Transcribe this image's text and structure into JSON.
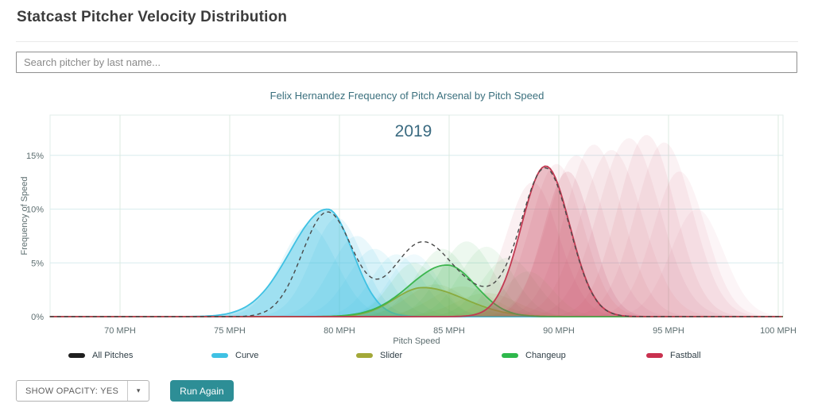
{
  "page": {
    "title": "Statcast Pitcher Velocity Distribution"
  },
  "search": {
    "placeholder": "Search pitcher by last name..."
  },
  "controls": {
    "opacity_label": "SHOW OPACITY: YES",
    "run_button": "Run Again",
    "button_color": "#2d8e96"
  },
  "chart_data": {
    "type": "area",
    "title": "Felix Hernandez Frequency of Pitch Arsenal by Pitch Speed",
    "annotation": "2019",
    "xlabel": "Pitch Speed",
    "ylabel": "Frequency of Speed",
    "xlim": [
      66.8,
      100.2
    ],
    "ylim": [
      0,
      18.75
    ],
    "grid": true,
    "x_ticks": [
      {
        "value": 70,
        "label": "70 MPH"
      },
      {
        "value": 75,
        "label": "75 MPH"
      },
      {
        "value": 80,
        "label": "80 MPH"
      },
      {
        "value": 85,
        "label": "85 MPH"
      },
      {
        "value": 90,
        "label": "90 MPH"
      },
      {
        "value": 95,
        "label": "95 MPH"
      },
      {
        "value": 100,
        "label": "100 MPH"
      }
    ],
    "y_ticks": [
      {
        "value": 0,
        "label": "0%"
      },
      {
        "value": 5,
        "label": "5%"
      },
      {
        "value": 10,
        "label": "10%"
      },
      {
        "value": 15,
        "label": "15%"
      }
    ],
    "legend": [
      {
        "name": "All Pitches",
        "color": "#1f1f1f"
      },
      {
        "name": "Curve",
        "color": "#3fc1e3"
      },
      {
        "name": "Slider",
        "color": "#a3a838"
      },
      {
        "name": "Changeup",
        "color": "#2eb84b"
      },
      {
        "name": "Fastball",
        "color": "#c9314f"
      }
    ],
    "series": [
      {
        "name": "Curve",
        "color": "#3fc1e3",
        "fill_opacity": 0.42,
        "peak_pct": 10.0,
        "peak_mph": 79.45,
        "sigma_left": 1.7,
        "sigma_right": 1.15
      },
      {
        "name": "Slider",
        "color": "#a3a838",
        "fill_opacity": 0.25,
        "peak_pct": 2.7,
        "peak_mph": 83.8,
        "sigma_left": 1.3,
        "sigma_right": 1.9
      },
      {
        "name": "Changeup",
        "color": "#3cb54e",
        "fill_opacity": 0.25,
        "peak_pct": 4.8,
        "peak_mph": 84.9,
        "sigma_left": 1.7,
        "sigma_right": 1.3
      },
      {
        "name": "Fastball",
        "color": "#c23a52",
        "fill_opacity": 0.33,
        "peak_pct": 14.0,
        "peak_mph": 89.4,
        "sigma_left": 1.1,
        "sigma_right": 1.1
      }
    ],
    "all_pitches": {
      "name": "All Pitches",
      "color": "#4a4a4a",
      "dashed": true,
      "components": [
        {
          "mph": 79.45,
          "sigma": 1.15,
          "peak_pct": 9.7
        },
        {
          "mph": 83.6,
          "sigma": 1.25,
          "peak_pct": 5.2
        },
        {
          "mph": 85.3,
          "sigma": 1.9,
          "peak_pct": 2.5
        },
        {
          "mph": 89.4,
          "sigma": 1.1,
          "peak_pct": 13.6
        }
      ]
    },
    "ghost_layers": [
      {
        "color": "#3fc1e3",
        "mph": 78.6,
        "sigma": 1.25,
        "peak_pct": 8.5,
        "opacity": 0.13
      },
      {
        "color": "#3fc1e3",
        "mph": 79.9,
        "sigma": 1.15,
        "peak_pct": 9.2,
        "opacity": 0.12
      },
      {
        "color": "#3fc1e3",
        "mph": 80.8,
        "sigma": 1.2,
        "peak_pct": 7.5,
        "opacity": 0.11
      },
      {
        "color": "#3fc1e3",
        "mph": 81.6,
        "sigma": 1.2,
        "peak_pct": 6.3,
        "opacity": 0.1
      },
      {
        "color": "#3fc1e3",
        "mph": 82.6,
        "sigma": 1.15,
        "peak_pct": 5.8,
        "opacity": 0.1
      },
      {
        "color": "#3fc1e3",
        "mph": 83.4,
        "sigma": 1.1,
        "peak_pct": 5.8,
        "opacity": 0.08
      },
      {
        "color": "#a3a838",
        "mph": 84.4,
        "sigma": 1.3,
        "peak_pct": 3.0,
        "opacity": 0.12
      },
      {
        "color": "#a3a838",
        "mph": 85.6,
        "sigma": 1.4,
        "peak_pct": 2.8,
        "opacity": 0.1
      },
      {
        "color": "#a3a838",
        "mph": 86.7,
        "sigma": 1.4,
        "peak_pct": 2.2,
        "opacity": 0.1
      },
      {
        "color": "#3cb54e",
        "mph": 83.4,
        "sigma": 1.1,
        "peak_pct": 5.0,
        "opacity": 0.09
      },
      {
        "color": "#3cb54e",
        "mph": 84.7,
        "sigma": 1.2,
        "peak_pct": 6.3,
        "opacity": 0.09
      },
      {
        "color": "#3cb54e",
        "mph": 85.8,
        "sigma": 1.2,
        "peak_pct": 7.0,
        "opacity": 0.09
      },
      {
        "color": "#3cb54e",
        "mph": 86.7,
        "sigma": 1.2,
        "peak_pct": 6.5,
        "opacity": 0.08
      },
      {
        "color": "#3cb54e",
        "mph": 87.7,
        "sigma": 1.2,
        "peak_pct": 5.5,
        "opacity": 0.08
      },
      {
        "color": "#3cb54e",
        "mph": 88.6,
        "sigma": 1.1,
        "peak_pct": 4.2,
        "opacity": 0.07
      },
      {
        "color": "#cf5a74",
        "mph": 88.8,
        "sigma": 1.2,
        "peak_pct": 12.5,
        "opacity": 0.09
      },
      {
        "color": "#cf5a74",
        "mph": 90.4,
        "sigma": 1.1,
        "peak_pct": 13.5,
        "opacity": 0.15
      },
      {
        "color": "#cf5a74",
        "mph": 89.9,
        "sigma": 1.2,
        "peak_pct": 14.2,
        "opacity": 0.09
      },
      {
        "color": "#cf5a74",
        "mph": 90.8,
        "sigma": 1.3,
        "peak_pct": 15.0,
        "opacity": 0.08
      },
      {
        "color": "#cf5a74",
        "mph": 91.6,
        "sigma": 1.3,
        "peak_pct": 16.0,
        "opacity": 0.08
      },
      {
        "color": "#cf5a74",
        "mph": 92.4,
        "sigma": 1.4,
        "peak_pct": 15.5,
        "opacity": 0.08
      },
      {
        "color": "#cf5a74",
        "mph": 93.2,
        "sigma": 1.4,
        "peak_pct": 16.6,
        "opacity": 0.08
      },
      {
        "color": "#cf5a74",
        "mph": 94.0,
        "sigma": 1.3,
        "peak_pct": 16.9,
        "opacity": 0.09
      },
      {
        "color": "#cf5a74",
        "mph": 94.8,
        "sigma": 1.3,
        "peak_pct": 16.2,
        "opacity": 0.08
      },
      {
        "color": "#cf5a74",
        "mph": 95.5,
        "sigma": 1.2,
        "peak_pct": 13.5,
        "opacity": 0.07
      },
      {
        "color": "#cf5a74",
        "mph": 96.3,
        "sigma": 1.2,
        "peak_pct": 10.0,
        "opacity": 0.06
      }
    ]
  }
}
